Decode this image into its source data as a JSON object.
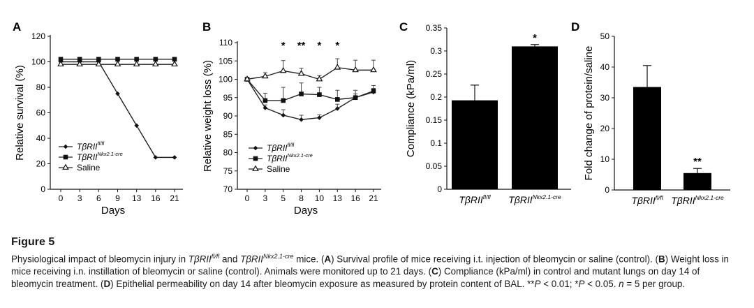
{
  "panels": {
    "A": {
      "letter": "A",
      "chart_data": {
        "type": "line",
        "x": [
          0,
          3,
          6,
          9,
          13,
          16,
          21
        ],
        "xlabel": "Days",
        "ylabel": "Relative survival (%)",
        "ylim": [
          0,
          120
        ],
        "yticks": [
          0,
          20,
          40,
          60,
          80,
          100,
          120
        ],
        "legend_position": "bottom-left",
        "series": [
          {
            "name": "TβRII",
            "sup": "fl/fl",
            "marker": "diamond",
            "values": [
              100,
              100,
              100,
              75,
              50,
              25,
              25
            ]
          },
          {
            "name": "TβRII",
            "sup": "Nkx2.1-cre",
            "marker": "square",
            "values": [
              102,
              102,
              102,
              102,
              102,
              102,
              102
            ]
          },
          {
            "name": "Saline",
            "sup": "",
            "marker": "triangle-open",
            "values": [
              98,
              98,
              98,
              98,
              98,
              98,
              98
            ]
          }
        ]
      }
    },
    "B": {
      "letter": "B",
      "chart_data": {
        "type": "line",
        "x": [
          0,
          3,
          5,
          8,
          10,
          13,
          16,
          21
        ],
        "xlabel": "Days",
        "ylabel": "Relative weight loss (%)",
        "ylim": [
          70,
          110
        ],
        "yticks": [
          70,
          75,
          80,
          85,
          90,
          95,
          100,
          105,
          110
        ],
        "legend_position": "bottom-left",
        "annotations": [
          {
            "x": 5,
            "text": "*"
          },
          {
            "x": 8,
            "text": "**"
          },
          {
            "x": 10,
            "text": "*"
          },
          {
            "x": 13,
            "text": "*"
          }
        ],
        "series": [
          {
            "name": "TβRII",
            "sup": "fl/fl",
            "marker": "diamond",
            "values": [
              100,
              92.2,
              90.2,
              89,
              89.5,
              92,
              95,
              96.5
            ],
            "errors": [
              0,
              0.8,
              1.5,
              1.2,
              0.8,
              1.2,
              1,
              1
            ]
          },
          {
            "name": "TβRII",
            "sup": "Nkx2.1-cre",
            "marker": "square",
            "values": [
              100,
              94.2,
              94.2,
              96,
              95.8,
              94.5,
              95,
              96.8
            ],
            "errors": [
              0,
              2,
              3.6,
              3,
              2,
              2.5,
              2,
              1.5
            ]
          },
          {
            "name": "Saline",
            "sup": "",
            "marker": "triangle-open",
            "values": [
              100,
              100.8,
              102.3,
              101.5,
              100,
              103.2,
              102.5,
              102.5
            ],
            "errors": [
              0,
              1,
              2.8,
              1.5,
              1,
              2.4,
              2.7,
              2.7
            ]
          }
        ]
      }
    },
    "C": {
      "letter": "C",
      "chart_data": {
        "type": "bar",
        "categories": [
          {
            "name": "TβRII",
            "sup": "fl/fl"
          },
          {
            "name": "TβRII",
            "sup": "Nkx2.1-cre"
          }
        ],
        "values": [
          0.193,
          0.31
        ],
        "errors": [
          0.033,
          0.004
        ],
        "annotations": [
          "",
          "*"
        ],
        "ylabel": "Compliance (kPa/ml)",
        "ylim": [
          0,
          0.35
        ],
        "yticks": [
          0,
          0.05,
          0.1,
          0.15,
          0.2,
          0.25,
          0.3,
          0.35
        ],
        "ytick_labels": [
          "0",
          "0.05",
          "0.1",
          "0.15",
          "0.2",
          "0.25",
          "0.3",
          "0.35"
        ],
        "bar_color": "#000000"
      }
    },
    "D": {
      "letter": "D",
      "chart_data": {
        "type": "bar",
        "categories": [
          {
            "name": "TβRII",
            "sup": "fl/fl"
          },
          {
            "name": "TβRII",
            "sup": "Nkx2.1-cre"
          }
        ],
        "values": [
          33.5,
          5.5
        ],
        "errors": [
          7,
          1.5
        ],
        "annotations": [
          "",
          "**"
        ],
        "ylabel": "Fold change of protein/saline",
        "ylim": [
          0,
          50
        ],
        "yticks": [
          0,
          10,
          20,
          30,
          40,
          50
        ],
        "bar_color": "#000000"
      }
    }
  },
  "caption": {
    "title": "Figure 5",
    "p1": "Physiological impact of bleomycin injury in ",
    "g1": "TβRII",
    "s1": "fl/fl",
    "p2": " and ",
    "g2": "TβRII",
    "s2": "Nkx2.1-cre",
    "p3": " mice. (",
    "a": "A",
    "p4": ") Survival profile of mice receiving i.t. injection of bleomycin or saline (control). (",
    "b": "B",
    "p5": ") Weight loss in mice receiving i.n. instillation of bleomycin or saline (control). Animals were monitored up to 21 days. (",
    "c": "C",
    "p6": ") Compliance (kPa/ml) in control and mutant lungs on day 14 of bleomycin treatment. (",
    "d": "D",
    "p7": ") Epithelial permeability on day 14 after bleomycin exposure as measured by protein content of BAL. **",
    "pv1": "P",
    "p8": " < 0.01; *",
    "pv2": "P",
    "p9": " < 0.05. ",
    "nv": "n",
    "p10": " = 5 per group."
  }
}
